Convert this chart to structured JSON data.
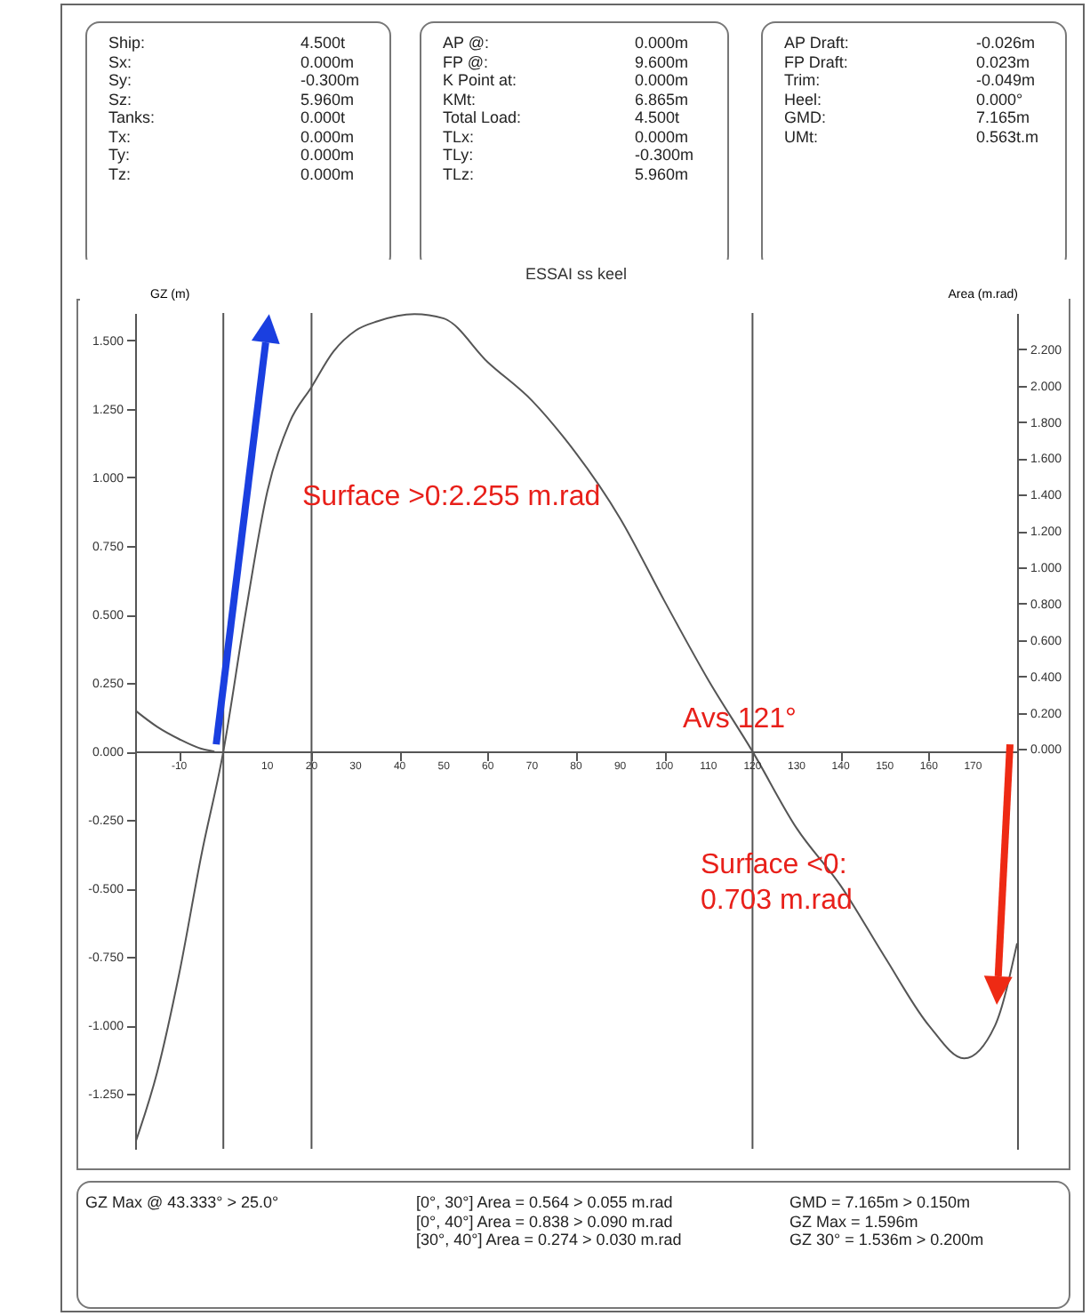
{
  "chart_data": [
    {
      "type": "other",
      "annotations": [
        "Ship:\nSx:\nSy:\nSz:\nTanks:\nTx:\nTy:\nTz:",
        "4.500t\n0.000m\n-0.300m\n5.960m\n0.000t\n0.000m\n0.000m\n0.000m"
      ]
    },
    {
      "type": "other",
      "annotations": [
        "AP @:\nFP @:\nK Point at:\nKMt:\nTotal Load:\nTLx:\nTLy:\nTLz:",
        "0.000m\n9.600m\n0.000m\n6.865m\n4.500t\n0.000m\n-0.300m\n5.960m"
      ]
    },
    {
      "type": "other",
      "annotations": [
        "AP Draft:\nFP Draft:\nTrim:\nHeel:\nGMD:\nUMt:",
        "-0.026m\n0.023m\n-0.049m\n0.000°\n7.165m\n0.563t.m"
      ]
    },
    {
      "type": "line",
      "title": "ESSAI ss keel",
      "ylabel": "GZ (m)",
      "y2label": "Area (m.rad)",
      "xlim": [
        -20,
        180
      ],
      "xticks": [
        -10,
        10,
        20,
        30,
        40,
        50,
        60,
        70,
        80,
        90,
        100,
        110,
        120,
        130,
        140,
        150,
        160,
        170
      ],
      "ylim": [
        -1.45,
        1.6
      ],
      "yticks": [
        {
          "value": -1.25,
          "label": "-1.250"
        },
        {
          "value": -1,
          "label": "-1.000"
        },
        {
          "value": -0.75,
          "label": "-0.750"
        },
        {
          "value": -0.5,
          "label": "-0.500"
        },
        {
          "value": -0.25,
          "label": "-0.250"
        },
        {
          "value": 0,
          "label": "0.000"
        },
        {
          "value": 0.25,
          "label": "0.250"
        },
        {
          "value": 0.5,
          "label": "0.500"
        },
        {
          "value": 0.75,
          "label": "0.750"
        },
        {
          "value": 1,
          "label": "1.000"
        },
        {
          "value": 1.25,
          "label": "1.250"
        },
        {
          "value": 1.5,
          "label": "1.500"
        }
      ],
      "y2lim": [
        -2.2,
        2.4
      ],
      "y2ticks": [
        {
          "value": 0,
          "label": "0.000"
        },
        {
          "value": 0.2,
          "label": "0.200"
        },
        {
          "value": 0.4,
          "label": "0.400"
        },
        {
          "value": 0.6,
          "label": "0.600"
        },
        {
          "value": 0.8,
          "label": "0.800"
        },
        {
          "value": 1,
          "label": "1.000"
        },
        {
          "value": 1.2,
          "label": "1.200"
        },
        {
          "value": 1.4,
          "label": "1.400"
        },
        {
          "value": 1.6,
          "label": "1.600"
        },
        {
          "value": 1.8,
          "label": "1.800"
        },
        {
          "value": 2,
          "label": "2.000"
        },
        {
          "value": 2.2,
          "label": "2.200"
        }
      ],
      "series": [
        {
          "color": "#555555",
          "x": [
            -20,
            -15,
            -10,
            -5,
            0,
            5,
            10,
            15,
            20,
            25,
            30,
            35,
            43.333,
            50,
            60,
            70,
            77,
            90,
            100,
            110,
            120,
            130,
            140,
            150,
            160,
            168,
            175,
            180
          ],
          "values": [
            -1.43,
            -1.17,
            -0.81,
            -0.38,
            0,
            0.5,
            0.95,
            1.2,
            1.33,
            1.46,
            1.536,
            1.57,
            1.596,
            1.58,
            1.42,
            1.28,
            1.15,
            0.85,
            0.55,
            0.26,
            0,
            -0.28,
            -0.49,
            -0.75,
            -1.0,
            -1.12,
            -1.0,
            -0.7
          ]
        },
        {
          "color": "#555555",
          "x": [
            -20,
            -15,
            -10,
            -5,
            -2
          ],
          "values": [
            0.15,
            0.09,
            0.045,
            0.01,
            0
          ]
        }
      ],
      "ref_lines": [
        {
          "axis": "x",
          "value": 0,
          "color": "#555555"
        },
        {
          "axis": "x",
          "value": 20,
          "color": "#555555"
        },
        {
          "axis": "x",
          "value": 120,
          "color": "#555555"
        }
      ],
      "annotations": [
        "Surface >0:2.255 m.rad",
        "Avs 121°",
        "Surface <0:\n0.703 m.rad"
      ],
      "grid": false
    },
    {
      "type": "other",
      "annotations": [
        "GZ Max @ 43.333° > 25.0°",
        "[0°, 30°] Area = 0.564 > 0.055 m.rad\n[0°, 40°] Area = 0.838 > 0.090 m.rad\n[30°, 40°] Area = 0.274 > 0.030 m.rad",
        "GMD = 7.165m > 0.150m\nGZ Max = 1.596m\nGZ 30° = 1.536m > 0.200m"
      ]
    }
  ]
}
